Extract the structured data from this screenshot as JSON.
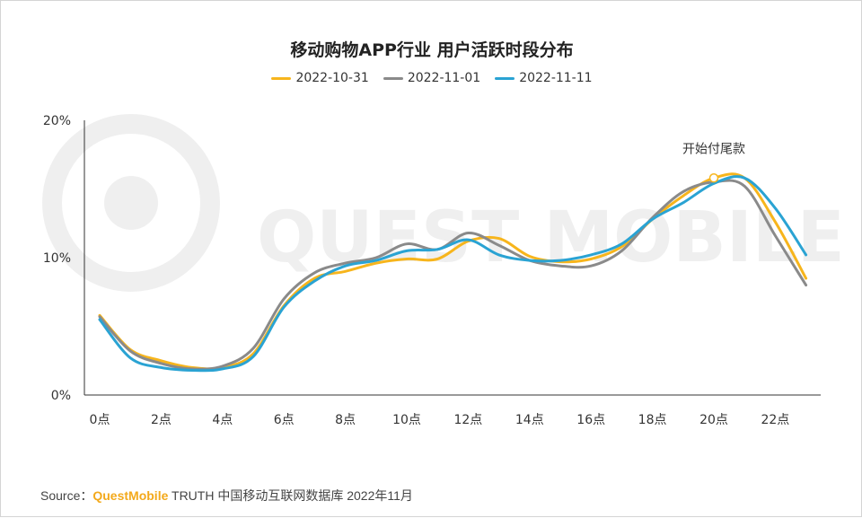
{
  "chart_data": {
    "type": "line",
    "title": "移动购物APP行业 用户活跃时段分布",
    "x": [
      0,
      1,
      2,
      3,
      4,
      5,
      6,
      7,
      8,
      9,
      10,
      11,
      12,
      13,
      14,
      15,
      16,
      17,
      18,
      19,
      20,
      21,
      22,
      23
    ],
    "x_tick_labels": [
      "0点",
      "2点",
      "4点",
      "6点",
      "8点",
      "10点",
      "12点",
      "14点",
      "16点",
      "18点",
      "20点",
      "22点"
    ],
    "y_tick_labels": [
      "0%",
      "10%",
      "20%"
    ],
    "ylim": [
      0,
      20
    ],
    "grid": false,
    "legend": "top-center",
    "series": [
      {
        "name": "2022-10-31",
        "color": "#f7b51c",
        "values": [
          5.8,
          3.3,
          2.5,
          2.0,
          2.0,
          3.0,
          6.5,
          8.5,
          9.0,
          9.6,
          9.9,
          9.9,
          11.2,
          11.4,
          10.1,
          9.7,
          9.9,
          10.8,
          12.8,
          14.5,
          15.8,
          15.8,
          12.6,
          8.5
        ]
      },
      {
        "name": "2022-11-01",
        "color": "#8a8a8a",
        "values": [
          5.7,
          3.2,
          2.3,
          1.9,
          2.1,
          3.4,
          7.0,
          8.9,
          9.6,
          10.0,
          11.0,
          10.6,
          11.8,
          10.9,
          9.8,
          9.4,
          9.4,
          10.5,
          12.9,
          14.8,
          15.5,
          15.2,
          11.6,
          8.0
        ]
      },
      {
        "name": "2022-11-11",
        "color": "#2aa3d3",
        "values": [
          5.5,
          2.7,
          2.0,
          1.8,
          1.9,
          2.8,
          6.4,
          8.3,
          9.4,
          9.8,
          10.5,
          10.6,
          11.3,
          10.2,
          9.8,
          9.8,
          10.2,
          11.0,
          12.8,
          14.0,
          15.4,
          15.8,
          13.6,
          10.2
        ]
      }
    ],
    "annotation": {
      "text": "开始付尾款",
      "x": 20,
      "y": 15.8,
      "series": "2022-10-31"
    }
  },
  "watermark": "QUEST MOBILE",
  "source": {
    "prefix": "Source：",
    "brand": "QuestMobile",
    "suffix": " TRUTH 中国移动互联网数据库 2022年11月"
  }
}
